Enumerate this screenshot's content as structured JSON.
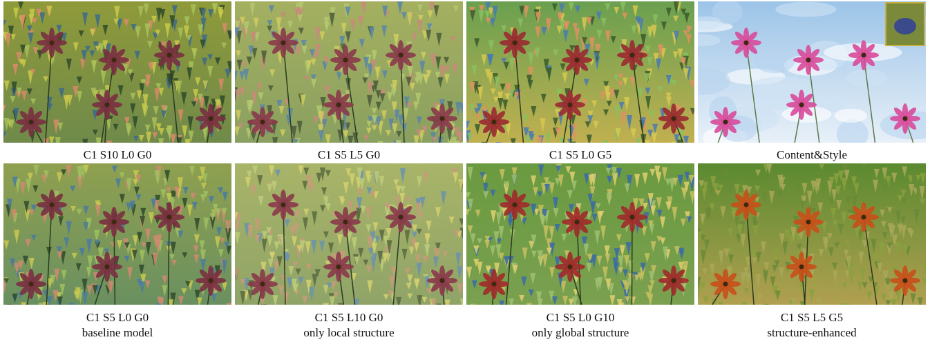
{
  "figure": {
    "panels": [
      {
        "caption": [
          "C1 S10 L0 G0"
        ]
      },
      {
        "caption": [
          "C1 S5 L5 G0"
        ]
      },
      {
        "caption": [
          "C1 S5 L0 G5"
        ]
      },
      {
        "caption": [
          "Content&Style"
        ]
      },
      {
        "caption": [
          "C1 S5 L0 G0",
          "baseline model"
        ]
      },
      {
        "caption": [
          "C1 S5 L10 G0",
          "only local structure"
        ]
      },
      {
        "caption": [
          "C1 S5 L0 G10",
          "only global structure"
        ]
      },
      {
        "caption": [
          "C1 S5 L5 G5",
          "structure-enhanced"
        ]
      }
    ]
  }
}
